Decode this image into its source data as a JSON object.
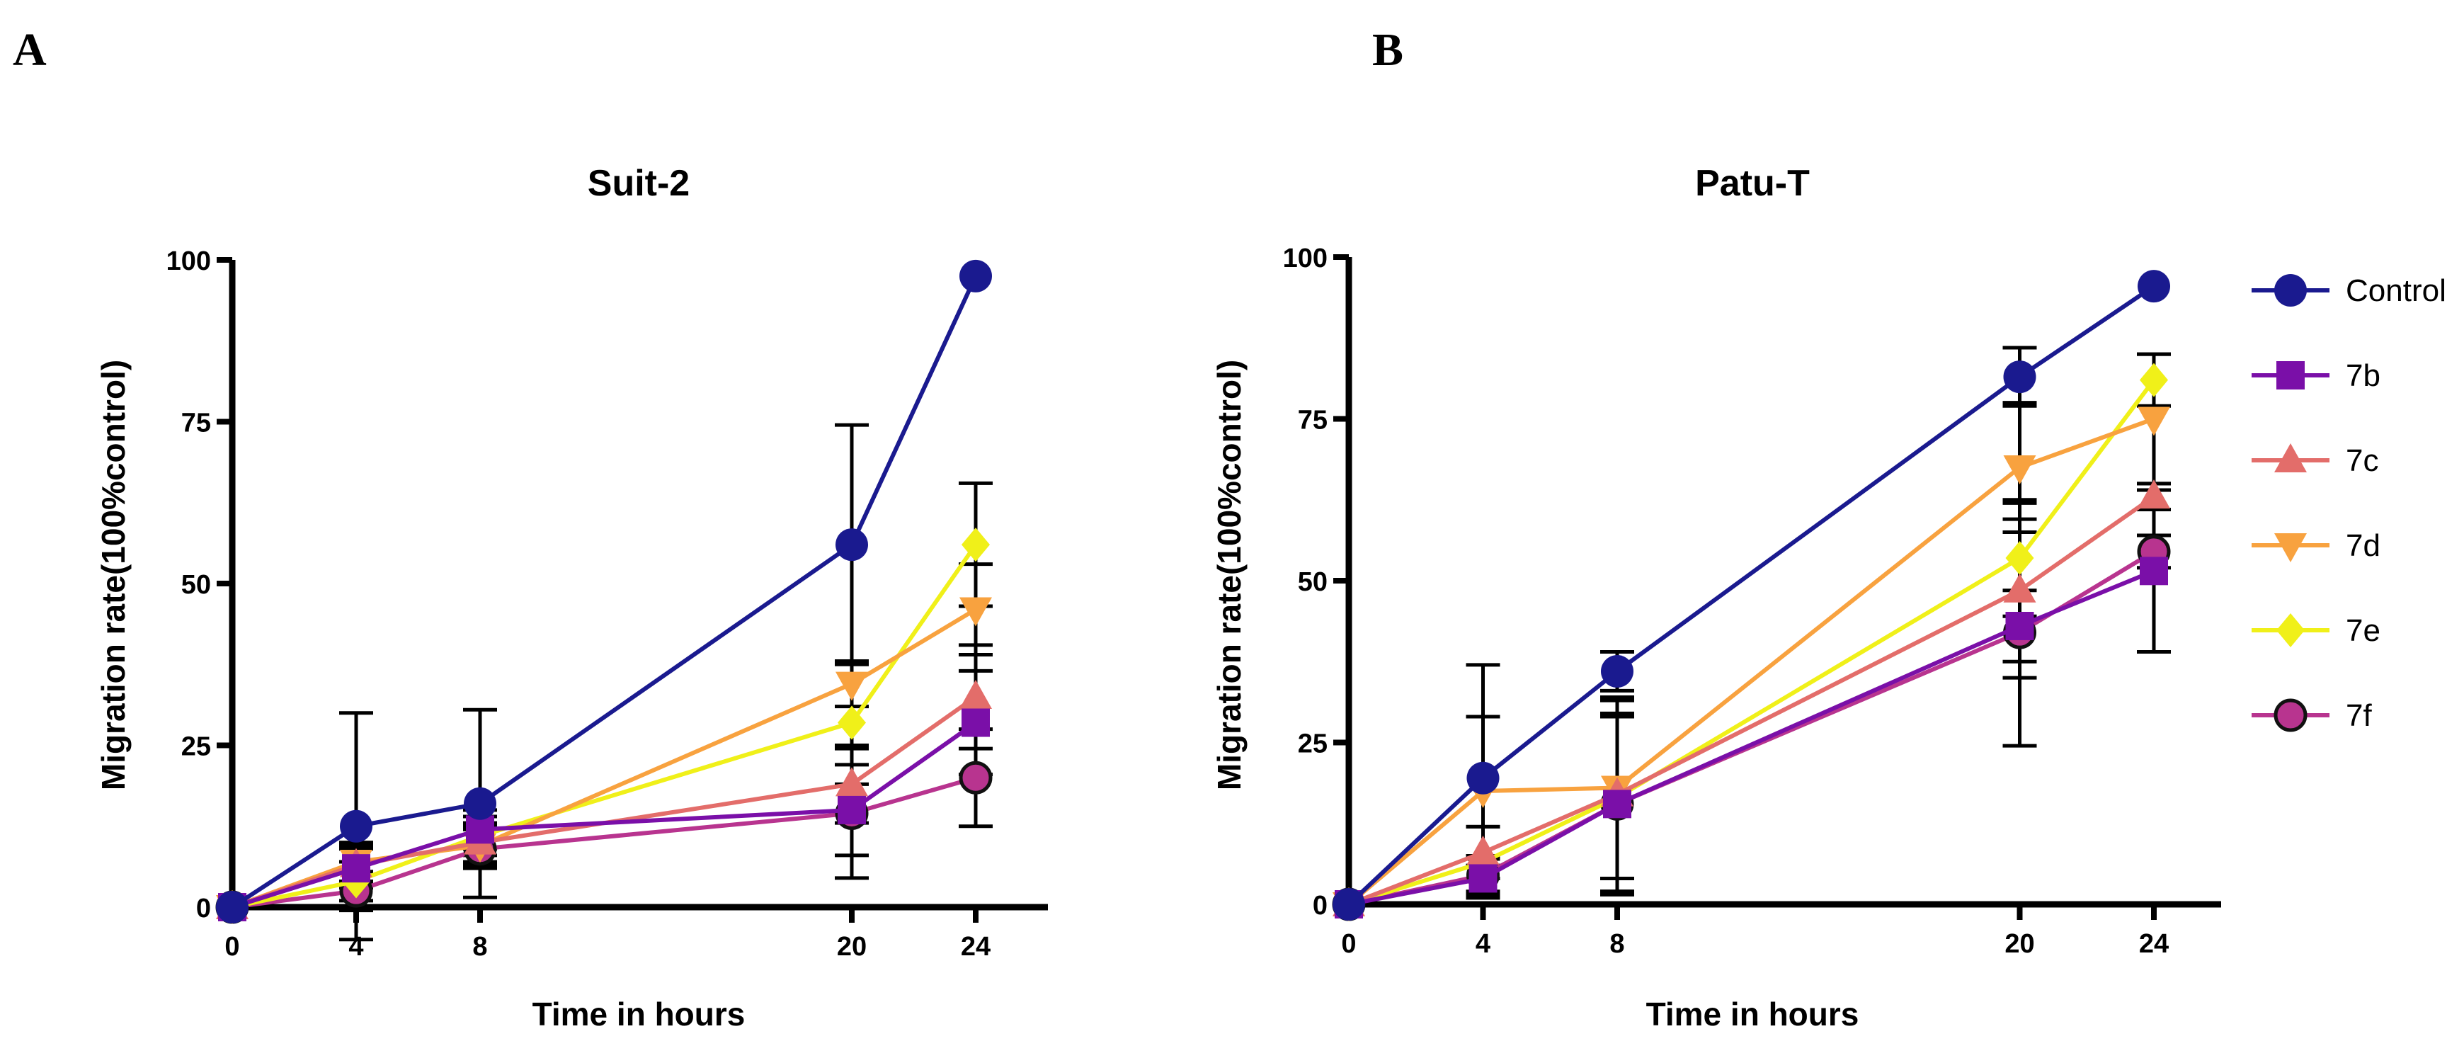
{
  "panels": [
    {
      "letter": "A"
    },
    {
      "letter": "B"
    }
  ],
  "chart_data": [
    {
      "type": "line",
      "title": "Suit-2",
      "xlabel": "Time in hours",
      "ylabel": "Migration rate(100%control)",
      "x": [
        0,
        4,
        8,
        20,
        24
      ],
      "xlim": [
        0,
        24
      ],
      "ylim": [
        0,
        100
      ],
      "yticks": [
        0,
        25,
        50,
        75,
        100
      ],
      "grid": false,
      "series": [
        {
          "name": "Control",
          "color": "#1a1a8f",
          "marker": "circle",
          "values": [
            0,
            12.5,
            16,
            56,
            97.5
          ],
          "errors": [
            0,
            17.5,
            14.5,
            18.5,
            0
          ]
        },
        {
          "name": "7b",
          "color": "#7a0fa8",
          "marker": "square",
          "values": [
            0,
            6,
            12,
            15,
            28.5
          ],
          "errors": [
            0,
            3,
            3,
            7,
            8
          ]
        },
        {
          "name": "7c",
          "color": "#e36d6a",
          "marker": "triangle-up",
          "values": [
            0,
            6.5,
            10,
            19,
            32.5
          ],
          "errors": [
            0,
            3,
            3,
            6,
            8
          ]
        },
        {
          "name": "7d",
          "color": "#f8a23f",
          "marker": "triangle-down",
          "values": [
            0,
            7,
            9.5,
            34.5,
            46
          ],
          "errors": [
            0,
            3,
            3,
            3.5,
            7
          ]
        },
        {
          "name": "7e",
          "color": "#f0f019",
          "marker": "diamond",
          "values": [
            0,
            4,
            11,
            28.5,
            56
          ],
          "errors": [
            0,
            3,
            3,
            9.5,
            9.5
          ]
        },
        {
          "name": "7f",
          "color": "#b8348f",
          "marker": "circle-outline",
          "values": [
            0,
            2.5,
            9,
            14.5,
            20
          ],
          "errors": [
            0,
            3,
            3,
            10,
            7.5
          ]
        }
      ]
    },
    {
      "type": "line",
      "title": "Patu-T",
      "xlabel": "Time in hours",
      "ylabel": "Migration rate(100%control)",
      "x": [
        0,
        4,
        8,
        20,
        24
      ],
      "xlim": [
        0,
        24
      ],
      "ylim": [
        0,
        100
      ],
      "yticks": [
        0,
        25,
        50,
        75,
        100
      ],
      "grid": false,
      "legend_position": "right",
      "series": [
        {
          "name": "Control",
          "color": "#1a1a8f",
          "marker": "circle",
          "values": [
            0,
            19.5,
            36,
            81.5,
            95.5
          ],
          "errors": [
            0,
            17.5,
            3,
            4.5,
            0
          ]
        },
        {
          "name": "7b",
          "color": "#7a0fa8",
          "marker": "square",
          "values": [
            0,
            4,
            15.5,
            43,
            51.5
          ],
          "errors": [
            0,
            3,
            14,
            5.5,
            12.5
          ]
        },
        {
          "name": "7c",
          "color": "#e36d6a",
          "marker": "triangle-up",
          "values": [
            0,
            8,
            17,
            48.5,
            63
          ],
          "errors": [
            0,
            4,
            15,
            13.5,
            2
          ]
        },
        {
          "name": "7d",
          "color": "#f8a23f",
          "marker": "triangle-down",
          "values": [
            0,
            17.5,
            18,
            67.5,
            75
          ],
          "errors": [
            0,
            11.5,
            14,
            10,
            10
          ]
        },
        {
          "name": "7e",
          "color": "#f0f019",
          "marker": "diamond",
          "values": [
            0,
            6.5,
            16.5,
            53.5,
            81
          ],
          "errors": [
            0,
            5.5,
            15,
            9,
            4
          ]
        },
        {
          "name": "7f",
          "color": "#b8348f",
          "marker": "circle-outline",
          "values": [
            0,
            4.5,
            15.5,
            42,
            54.5
          ],
          "errors": [
            0,
            3,
            13.5,
            17.5,
            2.5
          ]
        }
      ]
    }
  ]
}
